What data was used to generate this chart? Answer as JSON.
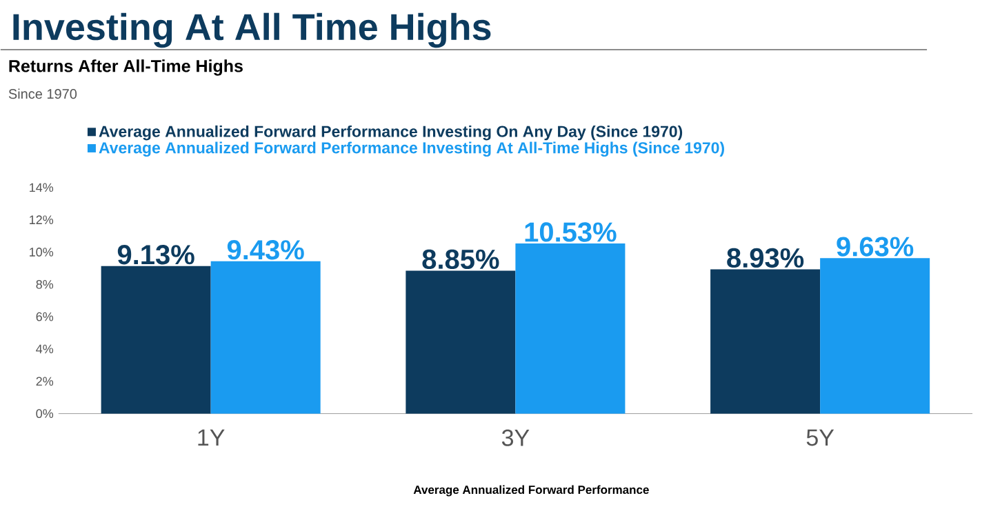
{
  "chart_data": {
    "type": "bar",
    "title": "Investing At All Time Highs",
    "subtitle": "Returns After All-Time Highs",
    "annotations": [
      "Since 1970"
    ],
    "xlabel": "Average Annualized Forward Performance",
    "categories": [
      "1Y",
      "3Y",
      "5Y"
    ],
    "series": [
      {
        "name": "Average Annualized Forward Performance Investing On Any Day (Since 1970)",
        "color": "#0d3b5e",
        "values": [
          9.13,
          8.85,
          8.93
        ],
        "value_labels": [
          "9.13%",
          "8.85%",
          "8.93%"
        ]
      },
      {
        "name": "Average Annualized Forward Performance Investing At All-Time Highs (Since 1970)",
        "color": "#1a9bf0",
        "values": [
          9.43,
          10.53,
          9.63
        ],
        "value_labels": [
          "9.43%",
          "10.53%",
          "9.63%"
        ]
      }
    ],
    "ylim": [
      0,
      14
    ],
    "yticks": [
      {
        "value": 0,
        "label": "0%"
      },
      {
        "value": 2,
        "label": "2%"
      },
      {
        "value": 4,
        "label": "4%"
      },
      {
        "value": 6,
        "label": "6%"
      },
      {
        "value": 8,
        "label": "8%"
      },
      {
        "value": 10,
        "label": "10%"
      },
      {
        "value": 12,
        "label": "12%"
      },
      {
        "value": 14,
        "label": "14%"
      }
    ],
    "legend": "top left"
  }
}
